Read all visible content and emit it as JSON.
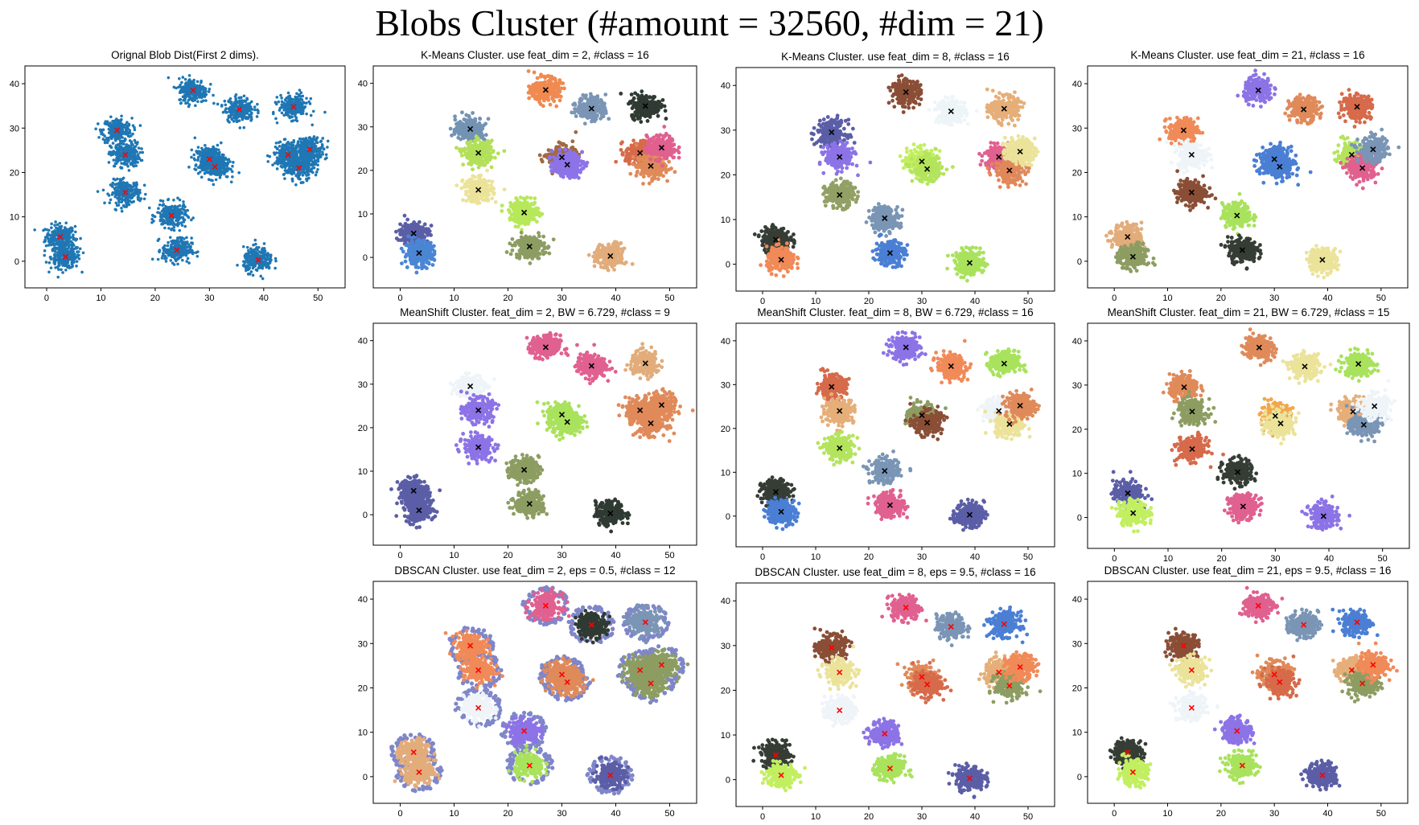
{
  "figure": {
    "title": "Blobs Cluster (#amount = 32560, #dim = 21)"
  },
  "centers": [
    [
      2.5,
      5.5
    ],
    [
      3.5,
      1
    ],
    [
      13,
      29.5
    ],
    [
      14.5,
      24
    ],
    [
      14.5,
      15.5
    ],
    [
      23,
      10.3
    ],
    [
      24,
      2.5
    ],
    [
      27,
      38.5
    ],
    [
      30,
      23
    ],
    [
      31,
      21.3
    ],
    [
      35.5,
      34.2
    ],
    [
      39,
      0.3
    ],
    [
      44.5,
      24
    ],
    [
      45.5,
      34.8
    ],
    [
      46.5,
      21
    ],
    [
      48.5,
      25.2
    ]
  ],
  "chart_data": [
    {
      "id": "orig",
      "type": "scatter",
      "title": "Orignal Blob Dist(First 2 dims).",
      "xlim": [
        -4,
        55
      ],
      "ylim": [
        -6,
        44
      ],
      "xticks": [
        0,
        10,
        20,
        30,
        40,
        50
      ],
      "yticks": [
        0,
        10,
        20,
        30,
        40
      ],
      "colors": [
        "#1f77b4",
        "#1f77b4",
        "#1f77b4",
        "#1f77b4",
        "#1f77b4",
        "#1f77b4",
        "#1f77b4",
        "#1f77b4",
        "#1f77b4",
        "#1f77b4",
        "#1f77b4",
        "#1f77b4",
        "#1f77b4",
        "#1f77b4",
        "#1f77b4",
        "#1f77b4"
      ],
      "marker_color": "#ff0000"
    },
    {
      "id": "km2",
      "type": "scatter",
      "title": "K-Means Cluster. use feat_dim = 2, #class = 16",
      "xlim": [
        -5,
        55
      ],
      "ylim": [
        -7,
        44
      ],
      "xticks": [
        0,
        10,
        20,
        30,
        40,
        50
      ],
      "yticks": [
        0,
        10,
        20,
        30,
        40
      ],
      "colors": [
        "#5b5ea6",
        "#4a86d4",
        "#7393b3",
        "#b3e05a",
        "#ebe39a",
        "#b6e85a",
        "#8d9d62",
        "#f08a50",
        "#a06a3e",
        "#8d73e8",
        "#7a95b5",
        "#e2ac7b",
        "#d76a4a",
        "#2f3a33",
        "#e08a5a",
        "#e0608f"
      ],
      "marker_color": "#000000"
    },
    {
      "id": "km8",
      "type": "scatter",
      "title": "K-Means Cluster. use feat_dim = 8, #class = 16",
      "xlim": [
        -5,
        55
      ],
      "ylim": [
        -6,
        44
      ],
      "xticks": [
        0,
        10,
        20,
        30,
        40,
        50
      ],
      "yticks": [
        0,
        10,
        20,
        30,
        40
      ],
      "colors": [
        "#353d35",
        "#f08a58",
        "#5b5ea6",
        "#8c73e6",
        "#92a065",
        "#7a95b5",
        "#4a7fd4",
        "#8a4e36",
        "#c2ef60",
        "#b3e45c",
        "#edf5f8",
        "#a9e25c",
        "#e2608f",
        "#e6ae78",
        "#e0885a",
        "#ebe39a"
      ],
      "marker_color": "#000000"
    },
    {
      "id": "km21",
      "type": "scatter",
      "title": "K-Means Cluster. use feat_dim = 21, #class = 16",
      "xlim": [
        -5,
        55
      ],
      "ylim": [
        -6,
        44
      ],
      "xticks": [
        0,
        10,
        20,
        30,
        40,
        50
      ],
      "yticks": [
        0,
        10,
        20,
        30,
        40
      ],
      "colors": [
        "#e2ac7b",
        "#8d9d62",
        "#f08a58",
        "#eef4f8",
        "#8a4e36",
        "#a9e25c",
        "#353d35",
        "#8c73e6",
        "#4a7fd4",
        "#4a7fd4",
        "#e08a5a",
        "#ebe39a",
        "#b3e45c",
        "#d66a4a",
        "#e0608f",
        "#7a95b5"
      ],
      "marker_color": "#000000"
    },
    {
      "id": "ms2",
      "type": "scatter",
      "title": "MeanShift Cluster. feat_dim = 2, BW = 6.729, #class = 9",
      "xlim": [
        -5,
        55
      ],
      "ylim": [
        -7,
        44
      ],
      "xticks": [
        0,
        10,
        20,
        30,
        40,
        50
      ],
      "yticks": [
        0,
        10,
        20,
        30,
        40
      ],
      "colors": [
        "#5b5ea6",
        "#5b5ea6",
        "#eef4f8",
        "#8c73e6",
        "#8c73e6",
        "#8d9d62",
        "#8d9d62",
        "#e0608f",
        "#a9e25c",
        "#a9e25c",
        "#e0608f",
        "#2f3a33",
        "#e08a5a",
        "#e2ac7b",
        "#e08a5a",
        "#e08a5a"
      ],
      "marker_color": "#000000"
    },
    {
      "id": "ms8",
      "type": "scatter",
      "title": "MeanShift Cluster. feat_dim = 8, BW = 6.729, #class = 16",
      "xlim": [
        -5,
        55
      ],
      "ylim": [
        -7,
        44
      ],
      "xticks": [
        0,
        10,
        20,
        30,
        40,
        50
      ],
      "yticks": [
        0,
        10,
        20,
        30,
        40
      ],
      "colors": [
        "#353d35",
        "#4a7fd4",
        "#d66a4a",
        "#e6ae78",
        "#b3e45c",
        "#7a95b5",
        "#e0608f",
        "#8c73e6",
        "#8d9d62",
        "#8a4e36",
        "#f08a58",
        "#5b5ea6",
        "#eef4f8",
        "#a9e25c",
        "#ebe39a",
        "#e08a5a"
      ],
      "marker_color": "#000000"
    },
    {
      "id": "ms21",
      "type": "scatter",
      "title": "MeanShift Cluster. feat_dim = 21, BW = 6.729, #class = 15",
      "xlim": [
        -5,
        55
      ],
      "ylim": [
        -7,
        44
      ],
      "xticks": [
        0,
        10,
        20,
        30,
        40,
        50
      ],
      "yticks": [
        0,
        10,
        20,
        30,
        40
      ],
      "colors": [
        "#5b5ea6",
        "#c2ef60",
        "#e08a5a",
        "#8d9d62",
        "#d66a4a",
        "#353d35",
        "#e0608f",
        "#e08a5a",
        "#f2a64c",
        "#ebe39a",
        "#ebe39a",
        "#8c73e6",
        "#e6ae78",
        "#a9e25c",
        "#7a95b5",
        "#eef4f8"
      ],
      "marker_color": "#000000"
    },
    {
      "id": "db2",
      "type": "scatter",
      "title": "DBSCAN Cluster. use feat_dim = 2, eps = 0.5, #class = 12",
      "xlim": [
        -5,
        55
      ],
      "ylim": [
        -6,
        44
      ],
      "xticks": [
        0,
        10,
        20,
        30,
        40,
        50
      ],
      "yticks": [
        0,
        10,
        20,
        30,
        40
      ],
      "colors": [
        "#e2ac7b",
        "#e2ac7b",
        "#f08a58",
        "#f08a58",
        "#eef4f8",
        "#8c73e6",
        "#a9e25c",
        "#e0608f",
        "#e08a5a",
        "#e08a5a",
        "#2f3a33",
        "#5b5ea6",
        "#8d9d62",
        "#7a95b5",
        "#8d9d62",
        "#8d9d62"
      ],
      "marker_color": "#ff0000",
      "noise_color": "#7f86c9"
    },
    {
      "id": "db8",
      "type": "scatter",
      "title": "DBSCAN Cluster. use feat_dim = 8, eps = 9.5, #class = 16",
      "xlim": [
        -5,
        55
      ],
      "ylim": [
        -6,
        44
      ],
      "xticks": [
        0,
        10,
        20,
        30,
        40,
        50
      ],
      "yticks": [
        0,
        10,
        20,
        30,
        40
      ],
      "colors": [
        "#353d35",
        "#c2ef60",
        "#8a4e36",
        "#ebe39a",
        "#eef4f8",
        "#8c73e6",
        "#a9e25c",
        "#e0608f",
        "#e08a5a",
        "#d66a4a",
        "#7a95b5",
        "#5b5ea6",
        "#e6ae78",
        "#4a7fd4",
        "#8d9d62",
        "#f08a58"
      ],
      "marker_color": "#ff0000"
    },
    {
      "id": "db21",
      "type": "scatter",
      "title": "DBSCAN Cluster. use feat_dim = 21, eps = 9.5, #class = 16",
      "xlim": [
        -5,
        55
      ],
      "ylim": [
        -6,
        44
      ],
      "xticks": [
        0,
        10,
        20,
        30,
        40,
        50
      ],
      "yticks": [
        0,
        10,
        20,
        30,
        40
      ],
      "colors": [
        "#353d35",
        "#c2ef60",
        "#8a4e36",
        "#ebe39a",
        "#eef4f8",
        "#8c73e6",
        "#a9e25c",
        "#e0608f",
        "#e08a5a",
        "#d66a4a",
        "#7a95b5",
        "#5b5ea6",
        "#e6ae78",
        "#4a7fd4",
        "#8d9d62",
        "#f08a58"
      ],
      "marker_color": "#ff0000"
    }
  ]
}
